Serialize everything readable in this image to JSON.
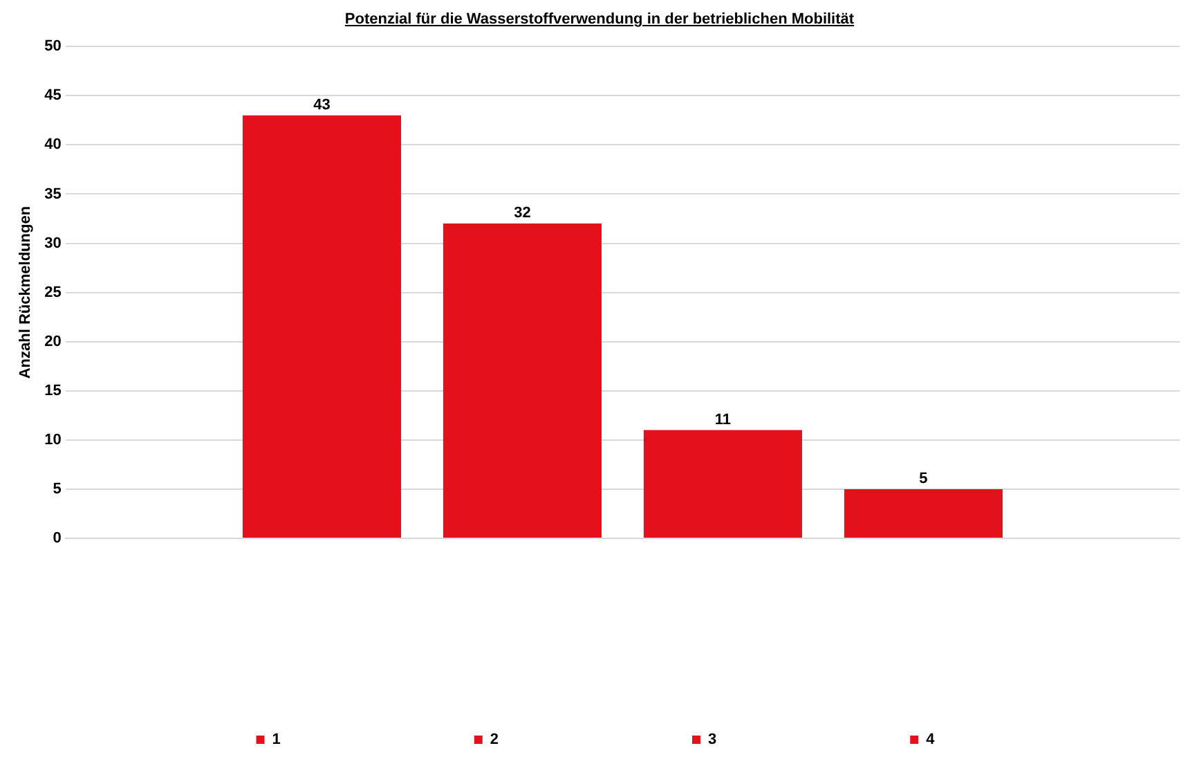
{
  "chart_data": {
    "type": "bar",
    "title": "Potenzial für die Wasserstoffverwendung in der betrieblichen Mobilität",
    "ylabel": "Anzahl Rückmeldungen",
    "categories": [
      null
    ],
    "series": [
      {
        "name": "1",
        "color": "#e3111b",
        "values": [
          43
        ]
      },
      {
        "name": "2",
        "color": "#e3111b",
        "values": [
          32
        ]
      },
      {
        "name": "3",
        "color": "#e3111b",
        "values": [
          11
        ]
      },
      {
        "name": "4",
        "color": "#e3111b",
        "values": [
          5
        ]
      }
    ],
    "ylim": [
      0,
      50
    ],
    "yticks": [
      0,
      5,
      10,
      15,
      20,
      25,
      30,
      35,
      40,
      45,
      50
    ],
    "grid": "y",
    "legend": "bottom",
    "data_labels": true
  }
}
